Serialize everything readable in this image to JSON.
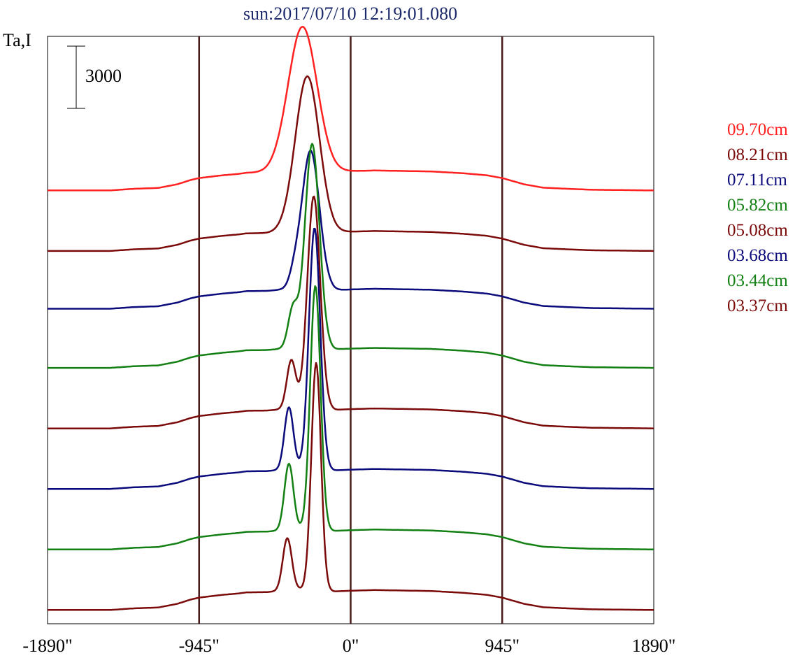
{
  "chart_data": {
    "type": "line",
    "title": "sun:2017/07/10 12:19:01.080",
    "ylabel": "Ta,I",
    "scale_bar_label": "3000",
    "scale_bar_value": 3000,
    "xlim": [
      -1890,
      1890
    ],
    "x_ticks": [
      {
        "value": -1890,
        "label": "-1890\""
      },
      {
        "value": -945,
        "label": "-945\""
      },
      {
        "value": 0,
        "label": "0\""
      },
      {
        "value": 945,
        "label": "945\""
      },
      {
        "value": 1890,
        "label": "1890\""
      }
    ],
    "vlines": [
      -945,
      0,
      945
    ],
    "series_template": {
      "x": [
        -1890,
        -1500,
        -1350,
        -1200,
        -1080,
        -1000,
        -945,
        -800,
        -700,
        -650,
        -520,
        -420,
        -330,
        -250,
        -200,
        -150,
        -100,
        0,
        150,
        300,
        500,
        700,
        850,
        945,
        1080,
        1200,
        1350,
        1500,
        1890
      ],
      "y_relative": [
        0,
        0,
        120,
        180,
        450,
        750,
        900,
        1100,
        1200,
        1280,
        1300,
        1400,
        1500,
        1500,
        1450,
        1400,
        1350,
        1400,
        1450,
        1420,
        1380,
        1250,
        1100,
        900,
        450,
        200,
        120,
        50,
        0
      ]
    },
    "series": [
      {
        "name": "09.70cm",
        "color": "#ff2020",
        "baseline": 0,
        "peaks": [
          {
            "x": -300,
            "amp": 10400,
            "w": 90
          }
        ]
      },
      {
        "name": "08.21cm",
        "color": "#7b0b0b",
        "baseline": -4400,
        "peaks": [
          {
            "x": -270,
            "amp": 11200,
            "w": 75
          }
        ]
      },
      {
        "name": "07.11cm",
        "color": "#0b0b7b",
        "baseline": -8600,
        "peaks": [
          {
            "x": -250,
            "amp": 10000,
            "w": 55
          },
          {
            "x": -350,
            "amp": 800,
            "w": 30
          }
        ]
      },
      {
        "name": "05.82cm",
        "color": "#128012",
        "baseline": -12900,
        "peaks": [
          {
            "x": -240,
            "amp": 14800,
            "w": 45
          },
          {
            "x": -360,
            "amp": 2800,
            "w": 30
          }
        ]
      },
      {
        "name": "05.08cm",
        "color": "#7b0b0b",
        "baseline": -17300,
        "peaks": [
          {
            "x": -230,
            "amp": 15400,
            "w": 40
          },
          {
            "x": -370,
            "amp": 3500,
            "w": 28
          }
        ]
      },
      {
        "name": "03.68cm",
        "color": "#0b0b7b",
        "baseline": -21700,
        "peaks": [
          {
            "x": -225,
            "amp": 17500,
            "w": 35
          },
          {
            "x": -385,
            "amp": 4500,
            "w": 28
          }
        ]
      },
      {
        "name": "03.44cm",
        "color": "#128012",
        "baseline": -26100,
        "peaks": [
          {
            "x": -220,
            "amp": 17700,
            "w": 32
          },
          {
            "x": -385,
            "amp": 4800,
            "w": 28
          }
        ]
      },
      {
        "name": "03.37cm",
        "color": "#7b0b0b",
        "baseline": -30500,
        "peaks": [
          {
            "x": -215,
            "amp": 16500,
            "w": 30
          },
          {
            "x": -395,
            "amp": 3800,
            "w": 28
          }
        ]
      }
    ],
    "ylim": [
      -31500,
      11200
    ],
    "legend_position": "right",
    "grid": false
  }
}
